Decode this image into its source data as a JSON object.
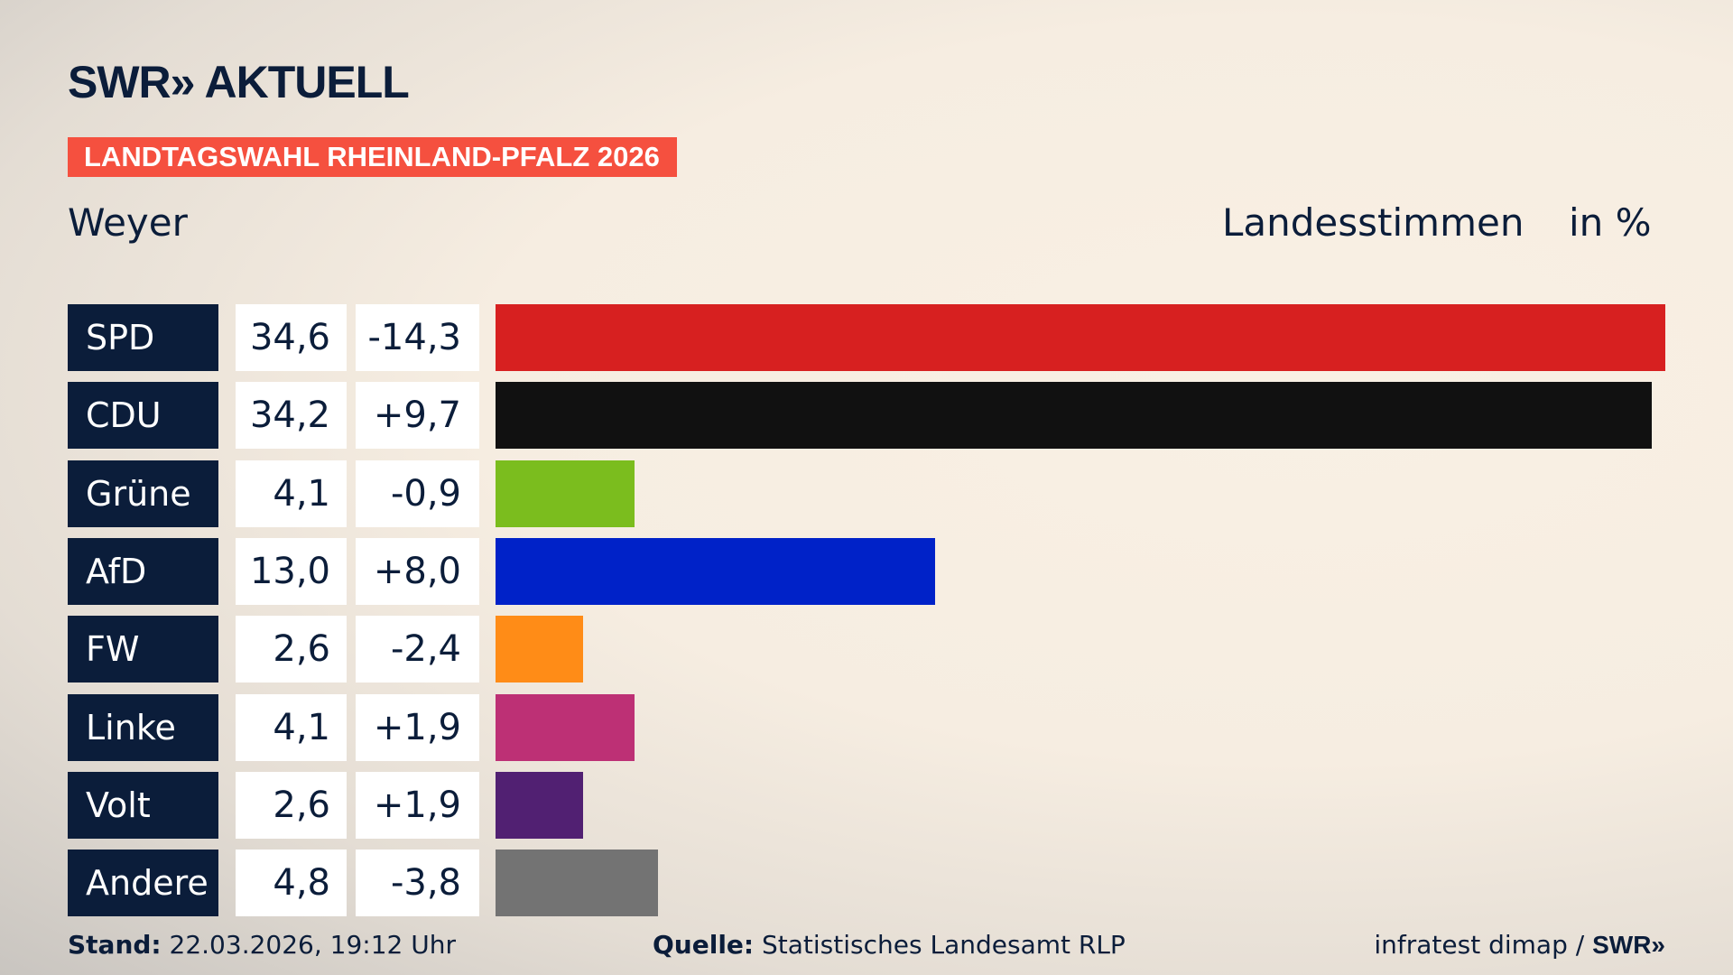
{
  "header": {
    "logo": "SWR» AKTUELL",
    "tag": "LANDTAGSWAHL RHEINLAND-PFALZ 2026",
    "place": "Weyer",
    "vote_type": "Landesstimmen",
    "unit": "in %"
  },
  "chart_data": {
    "type": "bar",
    "orientation": "horizontal",
    "categories": [
      "SPD",
      "CDU",
      "Grüne",
      "AfD",
      "FW",
      "Linke",
      "Volt",
      "Andere"
    ],
    "values": [
      34.6,
      34.2,
      4.1,
      13.0,
      2.6,
      4.1,
      2.6,
      4.8
    ],
    "value_labels": [
      "34,6",
      "34,2",
      "4,1",
      "13,0",
      "2,6",
      "4,1",
      "2,6",
      "4,8"
    ],
    "changes": [
      -14.3,
      9.7,
      -0.9,
      8.0,
      -2.4,
      1.9,
      1.9,
      -3.8
    ],
    "change_labels": [
      "-14,3",
      "+9,7",
      "-0,9",
      "+8,0",
      "-2,4",
      "+1,9",
      "+1,9",
      "-3,8"
    ],
    "colors": [
      "#d72020",
      "#111111",
      "#7bbd1e",
      "#0022c8",
      "#ff8c17",
      "#bd3075",
      "#512072",
      "#737373"
    ],
    "grid": false
  },
  "footer": {
    "stand_label": "Stand:",
    "stand": "22.03.2026, 19:12 Uhr",
    "source_label": "Quelle:",
    "source": "Statistisches Landesamt RLP",
    "credit": "infratest dimap / ",
    "credit_logo": "SWR»"
  }
}
